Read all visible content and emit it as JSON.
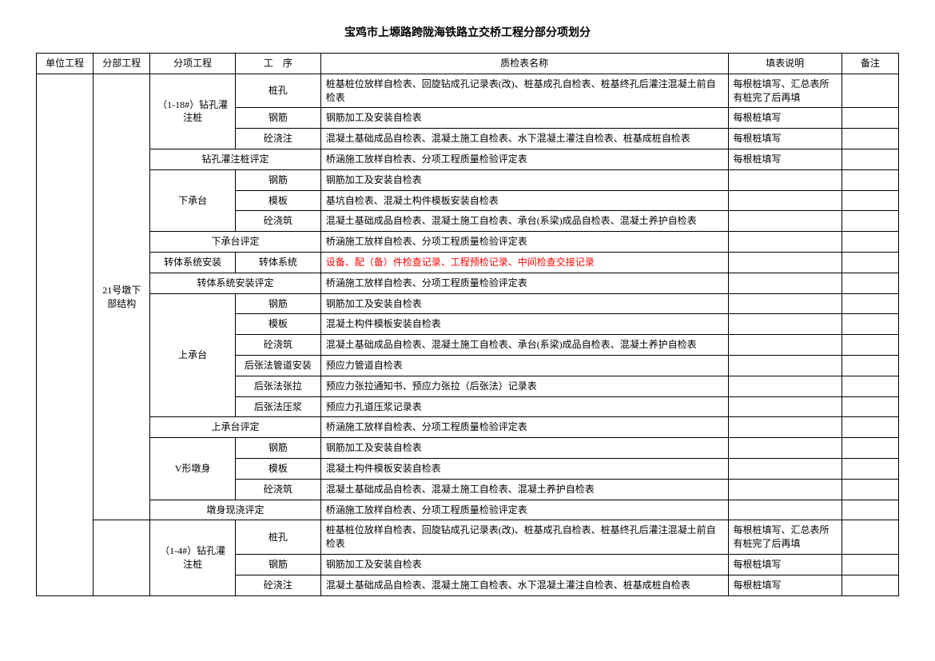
{
  "title": "宝鸡市上塬路跨陇海铁路立交桥工程分部分项划分",
  "headers": {
    "c1": "单位工程",
    "c2": "分部工程",
    "c3": "分项工程",
    "c4": "工　序",
    "c5": "质检表名称",
    "c6": "填表说明",
    "c7": "备注"
  },
  "col2_label": "21号墩下部结构",
  "groups": {
    "gz1": "（1-18#）钻孔灌注桩",
    "gz1_pd": "钻孔灌注桩评定",
    "xct": "下承台",
    "xct_pd": "下承台评定",
    "ztaz": "转体系统安装",
    "zt_gx": "转体系统",
    "zt_pd": "转体系统安装评定",
    "sct": "上承台",
    "sct_pd": "上承台评定",
    "vds": "V形墩身",
    "dsxj_pd": "墩身现浇评定",
    "gz2": "（1-4#）钻孔灌注桩"
  },
  "gx": {
    "zk": "桩孔",
    "gj": "钢筋",
    "tjz": "砼浇注",
    "mb": "模板",
    "tjzh": "砼浇筑",
    "hzgd": "后张法管道安装",
    "hzzl": "后张法张拉",
    "hzyy": "后张法压浆"
  },
  "zj": {
    "zk1": "桩基桩位放样自检表、回旋钻成孔记录表(改)、桩基成孔自检表、桩基终孔后灌注混凝土前自检表",
    "gj_std": "钢筋加工及安装自检表",
    "tjz1": "混凝土基础成品自检表、混凝土施工自检表、水下混凝土灌注自检表、桩基成桩自检表",
    "pd_std": "桥涵施工放样自检表、分项工程质量检验评定表",
    "xct_mb": "基坑自检表、混凝土构件模板安装自检表",
    "xct_tjz": "混凝土基础成品自检表、混凝土施工自检表、承台(系梁)成品自检表、混凝土养护自检表",
    "zt": "设备、配（备）件检查记录、工程预检记录、中间检查交接记录",
    "sct_mb": "混凝土构件模板安装自检表",
    "sct_tjz": "混凝土基础成品自检表、混凝土施工自检表、承台(系梁)成品自检表、混凝土养护自检表",
    "sct_gd": "预应力管道自检表",
    "sct_zl": "预应力张拉通知书、预应力张拉（后张法）记录表",
    "sct_yy": "预应力孔道压浆记录表",
    "vds_tjz": "混凝土基础成品自检表、混凝土施工自检表、混凝土养护自检表"
  },
  "note": {
    "zk": "每根桩填写、汇总表所有桩完了后再填",
    "meigen": "每根桩填写"
  }
}
